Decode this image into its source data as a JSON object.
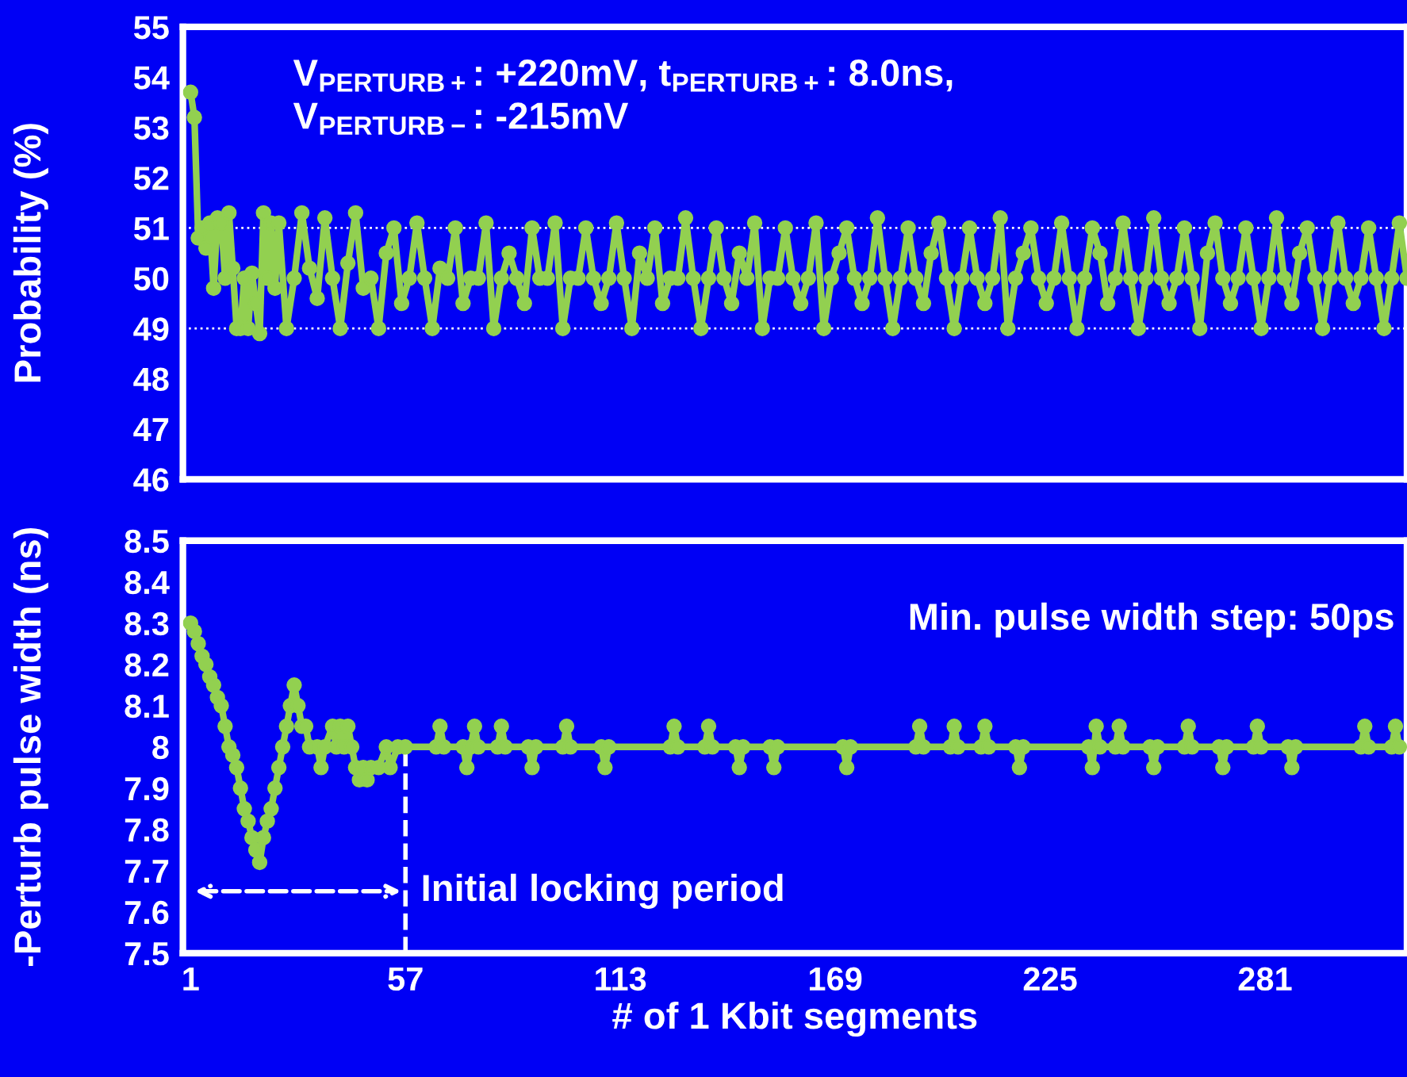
{
  "chart_data": [
    {
      "type": "line",
      "ylabel": "Probability (%)",
      "annotations": [
        "V$_{PERTURB+}$: +220mV, t$_{PERTURB+}$: 8.0ns,\nV$_{PERTURB−}$: -215mV"
      ],
      "series": [
        {
          "color": "#92d050",
          "x": [
            1,
            2,
            3,
            4,
            5,
            6,
            7,
            8,
            9,
            10,
            11,
            12,
            13,
            14,
            15,
            16,
            17,
            18,
            19,
            20,
            21,
            22,
            23,
            24,
            26,
            28,
            30,
            32,
            34,
            36,
            38,
            40,
            42,
            44,
            46,
            48,
            50,
            52,
            54,
            56,
            58,
            60,
            62,
            64,
            66,
            68,
            70,
            72,
            74,
            76,
            78,
            80,
            82,
            84,
            86,
            88,
            90,
            92,
            94,
            96,
            98,
            100,
            102,
            104,
            106,
            108,
            110,
            112,
            114,
            116,
            118,
            120,
            122,
            124,
            126,
            128,
            130,
            132,
            134,
            136,
            138,
            140,
            142,
            144,
            146,
            148,
            150,
            152,
            154,
            156,
            158,
            160,
            162,
            164,
            166,
            168,
            170,
            172,
            174,
            176,
            178,
            180,
            182,
            184,
            186,
            188,
            190,
            192,
            194,
            196,
            198,
            200,
            202,
            204,
            206,
            208,
            210,
            212,
            214,
            216,
            218,
            220,
            222,
            224,
            226,
            228,
            230,
            232,
            234,
            236,
            238,
            240,
            242,
            244,
            246,
            248,
            250,
            252,
            254,
            256,
            258,
            260,
            262,
            264,
            266,
            268,
            270,
            272,
            274,
            276,
            278,
            280,
            282,
            284,
            286,
            288,
            290,
            292,
            294,
            296,
            298,
            300,
            302,
            304,
            306,
            308,
            310,
            312,
            314,
            316,
            318
          ],
          "values": [
            53.7,
            53.2,
            50.8,
            51.0,
            50.6,
            51.1,
            49.8,
            51.2,
            51.1,
            50.0,
            51.3,
            50.2,
            49.0,
            49.0,
            50.0,
            49.0,
            50.1,
            49.5,
            48.9,
            51.3,
            50.0,
            51.1,
            49.8,
            51.1,
            49.0,
            50.0,
            51.3,
            50.2,
            49.6,
            51.2,
            50.0,
            49.0,
            50.3,
            51.3,
            49.8,
            50.0,
            49.0,
            50.5,
            51.0,
            49.5,
            50.0,
            51.1,
            50.0,
            49.0,
            50.2,
            50.0,
            51.0,
            49.5,
            50.0,
            50.0,
            51.1,
            49.0,
            50.0,
            50.5,
            50.0,
            49.5,
            51.0,
            50.0,
            50.0,
            51.1,
            49.0,
            50.0,
            50.0,
            51.0,
            50.0,
            49.5,
            50.0,
            51.1,
            50.0,
            49.0,
            50.5,
            50.0,
            51.0,
            49.5,
            50.0,
            50.0,
            51.2,
            50.0,
            49.0,
            50.0,
            51.0,
            50.0,
            49.5,
            50.5,
            50.0,
            51.1,
            49.0,
            50.0,
            50.0,
            51.0,
            50.0,
            49.5,
            50.0,
            51.1,
            49.0,
            50.0,
            50.5,
            51.0,
            50.0,
            49.5,
            50.0,
            51.2,
            50.0,
            49.0,
            50.0,
            51.0,
            50.0,
            49.5,
            50.5,
            51.1,
            50.0,
            49.0,
            50.0,
            51.0,
            50.0,
            49.5,
            50.0,
            51.2,
            49.0,
            50.0,
            50.5,
            51.0,
            50.0,
            49.5,
            50.0,
            51.1,
            50.0,
            49.0,
            50.0,
            51.0,
            50.5,
            49.5,
            50.0,
            51.1,
            50.0,
            49.0,
            50.0,
            51.2,
            50.0,
            49.5,
            50.0,
            51.0,
            50.0,
            49.0,
            50.5,
            51.1,
            50.0,
            49.5,
            50.0,
            51.0,
            50.0,
            49.0,
            50.0,
            51.2,
            50.0,
            49.5,
            50.5,
            51.0,
            50.0,
            49.0,
            50.0,
            51.1,
            50.0,
            49.5,
            50.0,
            51.0,
            50.0,
            49.0,
            50.0,
            51.1,
            50.0
          ]
        }
      ],
      "xlim": [
        -1,
        318
      ],
      "xticks": [
        1,
        57,
        113,
        169,
        225,
        281
      ],
      "ylim": [
        46,
        55
      ],
      "yticks": [
        46,
        47,
        48,
        49,
        50,
        51,
        52,
        53,
        54,
        55
      ],
      "ref_lines": [
        {
          "axis": "y",
          "value": 51,
          "color": "#ffffff",
          "line_style": "dotted"
        },
        {
          "axis": "y",
          "value": 49,
          "color": "#ffffff",
          "line_style": "dotted"
        }
      ],
      "tick_labels": "y",
      "marker": "circle",
      "line_style": "solid",
      "grid": false,
      "legend": false
    },
    {
      "type": "line",
      "ylabel": "-Perturb pulse width (ns)",
      "xlabel": "# of 1 Kbit segments",
      "annotations": [
        "Min. pulse width step: 50ps"
      ],
      "ref_lines": [
        {
          "axis": "x",
          "value": 57,
          "label": "Initial locking period",
          "color": "#ffffff",
          "line_style": "dashed"
        }
      ],
      "series": [
        {
          "color": "#92d050",
          "x": [
            1,
            2,
            3,
            4,
            5,
            6,
            7,
            8,
            9,
            10,
            11,
            12,
            13,
            14,
            15,
            16,
            17,
            18,
            19,
            20,
            21,
            22,
            23,
            24,
            25,
            26,
            27,
            28,
            29,
            30,
            31,
            32,
            34,
            35,
            36,
            38,
            39,
            40,
            41,
            42,
            43,
            44,
            45,
            46,
            47,
            48,
            50,
            52,
            53,
            55,
            57,
            65,
            66,
            67,
            72,
            73,
            74,
            75,
            76,
            81,
            82,
            83,
            89,
            90,
            91,
            98,
            99,
            100,
            108,
            109,
            110,
            126,
            127,
            128,
            135,
            136,
            137,
            143,
            144,
            145,
            152,
            153,
            154,
            171,
            172,
            173,
            190,
            191,
            192,
            199,
            200,
            201,
            207,
            208,
            209,
            216,
            217,
            218,
            235,
            236,
            237,
            238,
            242,
            243,
            244,
            251,
            252,
            253,
            260,
            261,
            262,
            269,
            270,
            271,
            278,
            279,
            280,
            287,
            288,
            289,
            306,
            307,
            308,
            314,
            315,
            316
          ],
          "values": [
            8.3,
            8.28,
            8.25,
            8.22,
            8.2,
            8.17,
            8.15,
            8.12,
            8.1,
            8.05,
            8.0,
            7.98,
            7.95,
            7.9,
            7.85,
            7.82,
            7.78,
            7.75,
            7.72,
            7.78,
            7.82,
            7.85,
            7.9,
            7.95,
            8.0,
            8.05,
            8.1,
            8.15,
            8.1,
            8.05,
            8.05,
            8.0,
            8.0,
            7.95,
            8.0,
            8.05,
            8.0,
            8.05,
            8.0,
            8.05,
            8.0,
            7.95,
            7.92,
            7.95,
            7.92,
            7.95,
            7.95,
            8.0,
            7.95,
            8.0,
            8.0,
            8.0,
            8.05,
            8.0,
            8.0,
            7.95,
            8.0,
            8.05,
            8.0,
            8.0,
            8.05,
            8.0,
            8.0,
            7.95,
            8.0,
            8.0,
            8.05,
            8.0,
            8.0,
            7.95,
            8.0,
            8.0,
            8.05,
            8.0,
            8.0,
            8.05,
            8.0,
            8.0,
            7.95,
            8.0,
            8.0,
            7.95,
            8.0,
            8.0,
            7.95,
            8.0,
            8.0,
            8.05,
            8.0,
            8.0,
            8.05,
            8.0,
            8.0,
            8.05,
            8.0,
            8.0,
            7.95,
            8.0,
            8.0,
            7.95,
            8.05,
            8.0,
            8.0,
            8.05,
            8.0,
            8.0,
            7.95,
            8.0,
            8.0,
            8.05,
            8.0,
            8.0,
            7.95,
            8.0,
            8.0,
            8.05,
            8.0,
            8.0,
            7.95,
            8.0,
            8.0,
            8.05,
            8.0,
            8.0,
            8.05,
            8.0
          ]
        }
      ],
      "xlim": [
        -1,
        318
      ],
      "xticks": [
        1,
        57,
        113,
        169,
        225,
        281
      ],
      "ylim": [
        7.5,
        8.5
      ],
      "yticks": [
        7.5,
        7.6,
        7.7,
        7.8,
        7.9,
        8,
        8.1,
        8.2,
        8.3,
        8.4,
        8.5
      ],
      "marker": "circle",
      "line_style": "solid",
      "grid": false,
      "legend": false
    }
  ]
}
